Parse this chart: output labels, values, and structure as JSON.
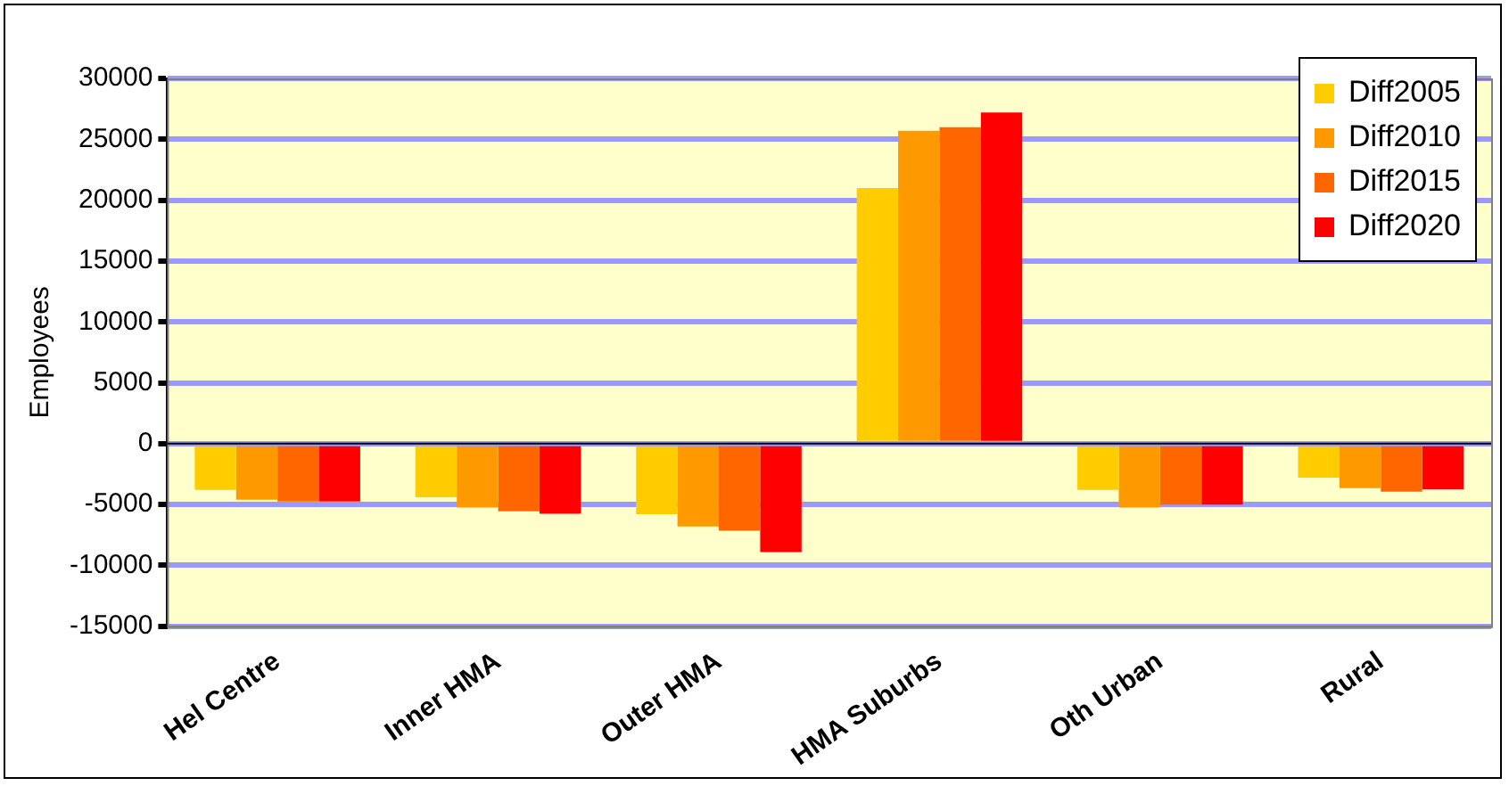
{
  "chart_data": {
    "type": "bar",
    "ylabel": "Employees",
    "categories": [
      "Hel Centre",
      "Inner HMA",
      "Outer HMA",
      "HMA Suburbs",
      "Oth Urban",
      "Rural"
    ],
    "series": [
      {
        "name": "Diff2005",
        "color": "#ffcc00",
        "values": [
          -3800,
          -4400,
          -5800,
          21000,
          -3800,
          -2800
        ]
      },
      {
        "name": "Diff2010",
        "color": "#ff9900",
        "values": [
          -4600,
          -5250,
          -6800,
          25700,
          -5250,
          -3650
        ]
      },
      {
        "name": "Diff2015",
        "color": "#ff6600",
        "values": [
          -4750,
          -5550,
          -7150,
          26000,
          -5000,
          -3950
        ]
      },
      {
        "name": "Diff2020",
        "color": "#ff0000",
        "values": [
          -4750,
          -5750,
          -8900,
          27200,
          -5000,
          -3750
        ]
      }
    ],
    "ylim": [
      -15000,
      30000
    ],
    "yticks": [
      -15000,
      -10000,
      -5000,
      0,
      5000,
      10000,
      15000,
      20000,
      25000,
      30000
    ],
    "grid": "y",
    "legend": "top right"
  }
}
